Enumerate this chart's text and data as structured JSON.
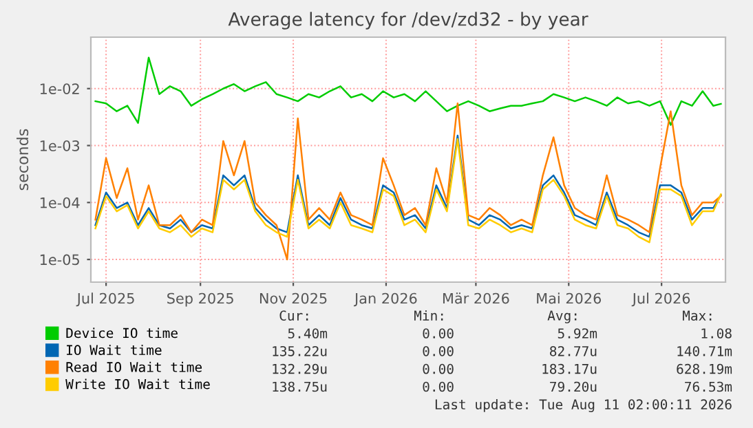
{
  "chart_data": {
    "type": "line",
    "title": "Average latency for /dev/zd32 - by year",
    "ylabel": "seconds",
    "x": [
      "2025-06-24",
      "2025-07-01",
      "2025-07-08",
      "2025-07-15",
      "2025-07-22",
      "2025-07-29",
      "2025-08-05",
      "2025-08-12",
      "2025-08-19",
      "2025-08-26",
      "2025-09-02",
      "2025-09-09",
      "2025-09-16",
      "2025-09-23",
      "2025-09-30",
      "2025-10-07",
      "2025-10-14",
      "2025-10-21",
      "2025-10-28",
      "2025-11-04",
      "2025-11-11",
      "2025-11-18",
      "2025-11-25",
      "2025-12-02",
      "2025-12-09",
      "2025-12-16",
      "2025-12-23",
      "2025-12-30",
      "2026-01-06",
      "2026-01-13",
      "2026-01-20",
      "2026-01-27",
      "2026-02-03",
      "2026-02-10",
      "2026-02-17",
      "2026-02-24",
      "2026-03-03",
      "2026-03-10",
      "2026-03-17",
      "2026-03-24",
      "2026-03-31",
      "2026-04-07",
      "2026-04-14",
      "2026-04-21",
      "2026-04-28",
      "2026-05-05",
      "2026-05-12",
      "2026-05-19",
      "2026-05-26",
      "2026-06-02",
      "2026-06-09",
      "2026-06-16",
      "2026-06-23",
      "2026-06-30",
      "2026-07-07",
      "2026-07-14",
      "2026-07-21",
      "2026-07-28",
      "2026-08-04",
      "2026-08-09"
    ],
    "series": [
      {
        "name": "Device IO time",
        "color": "#00cc00",
        "values": [
          0.006,
          0.0055,
          0.004,
          0.005,
          0.0025,
          0.035,
          0.008,
          0.011,
          0.009,
          0.005,
          0.0065,
          0.008,
          0.01,
          0.012,
          0.009,
          0.011,
          0.013,
          0.008,
          0.007,
          0.006,
          0.008,
          0.007,
          0.009,
          0.011,
          0.007,
          0.008,
          0.006,
          0.009,
          0.007,
          0.008,
          0.006,
          0.009,
          0.006,
          0.004,
          0.005,
          0.006,
          0.005,
          0.004,
          0.0045,
          0.005,
          0.005,
          0.0055,
          0.006,
          0.008,
          0.007,
          0.006,
          0.007,
          0.006,
          0.005,
          0.007,
          0.0055,
          0.006,
          0.005,
          0.006,
          0.0023,
          0.006,
          0.005,
          0.009,
          0.005,
          0.0054
        ]
      },
      {
        "name": "IO Wait time",
        "color": "#0066b3",
        "values": [
          4e-05,
          0.00015,
          8e-05,
          0.0001,
          4e-05,
          8e-05,
          4e-05,
          3.5e-05,
          5e-05,
          3e-05,
          4e-05,
          3.5e-05,
          0.0003,
          0.0002,
          0.0003,
          8e-05,
          5e-05,
          3.5e-05,
          3e-05,
          0.0003,
          4e-05,
          6e-05,
          4e-05,
          0.00012,
          5e-05,
          4e-05,
          3.5e-05,
          0.0002,
          0.00015,
          5e-05,
          6e-05,
          3.5e-05,
          0.0002,
          8e-05,
          0.0015,
          5e-05,
          4e-05,
          6e-05,
          5e-05,
          3.5e-05,
          4e-05,
          3.5e-05,
          0.0002,
          0.0003,
          0.00015,
          6e-05,
          5e-05,
          4e-05,
          0.00015,
          5e-05,
          4e-05,
          3e-05,
          2.5e-05,
          0.0002,
          0.0002,
          0.00015,
          5e-05,
          8e-05,
          8e-05,
          0.000135
        ]
      },
      {
        "name": "Read IO Wait time",
        "color": "#ff8000",
        "values": [
          5e-05,
          0.0006,
          0.00012,
          0.0004,
          5e-05,
          0.0002,
          4e-05,
          4e-05,
          6e-05,
          3e-05,
          5e-05,
          4e-05,
          0.0012,
          0.0003,
          0.0012,
          0.0001,
          6e-05,
          4e-05,
          1e-05,
          0.003,
          5e-05,
          8e-05,
          5e-05,
          0.00015,
          6e-05,
          5e-05,
          4e-05,
          0.0006,
          0.0002,
          6e-05,
          8e-05,
          4e-05,
          0.0004,
          0.0001,
          0.0055,
          6e-05,
          5e-05,
          8e-05,
          6e-05,
          4e-05,
          5e-05,
          4e-05,
          0.0003,
          0.0014,
          0.0002,
          8e-05,
          6e-05,
          5e-05,
          0.0003,
          6e-05,
          5e-05,
          4e-05,
          3e-05,
          0.0004,
          0.004,
          0.0002,
          6e-05,
          0.0001,
          0.0001,
          0.00013
        ]
      },
      {
        "name": "Write IO Wait time",
        "color": "#ffcc00",
        "values": [
          3.5e-05,
          0.00013,
          7e-05,
          9e-05,
          3.5e-05,
          7e-05,
          3.5e-05,
          3e-05,
          4e-05,
          2.5e-05,
          3.5e-05,
          3e-05,
          0.00025,
          0.00017,
          0.00025,
          7e-05,
          4e-05,
          3e-05,
          2.5e-05,
          0.00025,
          3.5e-05,
          5e-05,
          3.5e-05,
          0.0001,
          4e-05,
          3.5e-05,
          3e-05,
          0.00017,
          0.00013,
          4e-05,
          5e-05,
          3e-05,
          0.00017,
          7e-05,
          0.0013,
          4e-05,
          3.5e-05,
          5e-05,
          4e-05,
          3e-05,
          3.5e-05,
          3e-05,
          0.00017,
          0.00025,
          0.00013,
          5e-05,
          4e-05,
          3.5e-05,
          0.00013,
          4e-05,
          3.5e-05,
          2.5e-05,
          2e-05,
          0.00017,
          0.00017,
          0.00013,
          4e-05,
          7e-05,
          7e-05,
          0.000139
        ]
      }
    ],
    "log": "y",
    "xlim": [
      "2025-06-21",
      "2026-08-12"
    ],
    "ylim": [
      4e-06,
      0.08
    ],
    "xticks": [
      {
        "value": "2025-07-01",
        "label": "Jul 2025"
      },
      {
        "value": "2025-09-01",
        "label": "Sep 2025"
      },
      {
        "value": "2025-11-01",
        "label": "Nov 2025"
      },
      {
        "value": "2026-01-01",
        "label": "Jan 2026"
      },
      {
        "value": "2026-03-01",
        "label": "Mär 2026"
      },
      {
        "value": "2026-05-01",
        "label": "Mai 2026"
      },
      {
        "value": "2026-07-01",
        "label": "Jul 2026"
      }
    ],
    "yticks": [
      {
        "value": 1e-05,
        "label": "1e-05"
      },
      {
        "value": 0.0001,
        "label": "1e-04"
      },
      {
        "value": 0.001,
        "label": "1e-03"
      },
      {
        "value": 0.01,
        "label": "1e-02"
      }
    ],
    "grid": true,
    "legend": "bottom",
    "marker": "none",
    "line_style": "solid",
    "annotations": [
      "Cur:",
      "Min:",
      "Avg:",
      "Max:",
      "5.40m",
      "0.00",
      "5.92m",
      "1.08",
      "135.22u",
      "0.00",
      "82.77u",
      "140.71m",
      "132.29u",
      "0.00",
      "183.17u",
      "628.19m",
      "138.75u",
      "0.00",
      "79.20u",
      "76.53m",
      "Last update: Tue Aug 11 02:00:11 2026"
    ]
  }
}
